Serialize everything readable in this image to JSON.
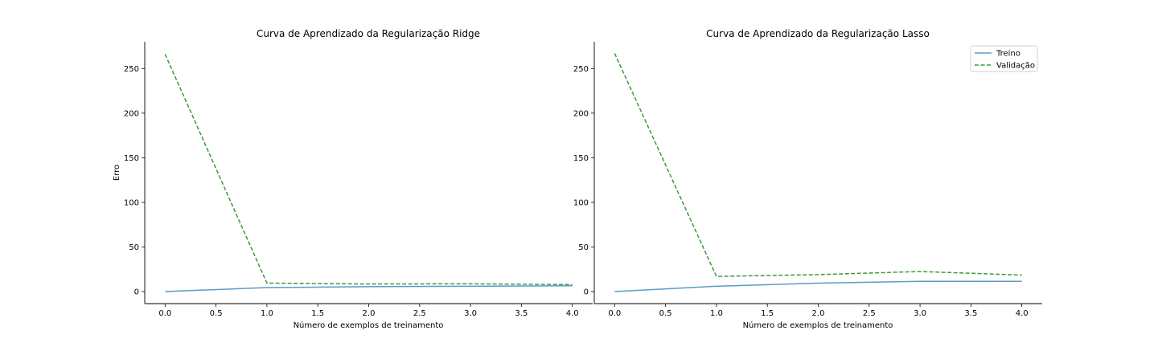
{
  "chart_data": [
    {
      "type": "line",
      "title": "Curva de Aprendizado da Regularização Ridge",
      "xlabel": "Número de exemplos de treinamento",
      "ylabel": "Erro",
      "xlim": [
        -0.2,
        4.2
      ],
      "ylim": [
        -13.5,
        280
      ],
      "xticks": [
        0.0,
        0.5,
        1.0,
        1.5,
        2.0,
        2.5,
        3.0,
        3.5,
        4.0
      ],
      "xtick_labels": [
        "0.0",
        "0.5",
        "1.0",
        "1.5",
        "2.0",
        "2.5",
        "3.0",
        "3.5",
        "4.0"
      ],
      "yticks": [
        0,
        50,
        100,
        150,
        200,
        250
      ],
      "ytick_labels": [
        "0",
        "50",
        "100",
        "150",
        "200",
        "250"
      ],
      "x": [
        0,
        1,
        2,
        3,
        4
      ],
      "series": [
        {
          "name": "Treino",
          "values": [
            0,
            4.5,
            5.5,
            6.0,
            6.5
          ],
          "color": "#5b9bc8",
          "style": "solid"
        },
        {
          "name": "Validação",
          "values": [
            266,
            9.5,
            8.5,
            8.7,
            7.8
          ],
          "color": "#3a9a3a",
          "style": "dashed"
        }
      ],
      "legend": null,
      "grid": false
    },
    {
      "type": "line",
      "title": "Curva de Aprendizado da Regularização Lasso",
      "xlabel": "Número de exemplos de treinamento",
      "ylabel": "",
      "xlim": [
        -0.2,
        4.2
      ],
      "ylim": [
        -13.5,
        280
      ],
      "xticks": [
        0.0,
        0.5,
        1.0,
        1.5,
        2.0,
        2.5,
        3.0,
        3.5,
        4.0
      ],
      "xtick_labels": [
        "0.0",
        "0.5",
        "1.0",
        "1.5",
        "2.0",
        "2.5",
        "3.0",
        "3.5",
        "4.0"
      ],
      "yticks": [
        0,
        50,
        100,
        150,
        200,
        250
      ],
      "ytick_labels": [
        "0",
        "50",
        "100",
        "150",
        "200",
        "250"
      ],
      "x": [
        0,
        1,
        2,
        3,
        4
      ],
      "series": [
        {
          "name": "Treino",
          "values": [
            0,
            6.0,
            9.5,
            11.5,
            11.5
          ],
          "color": "#5b9bc8",
          "style": "solid"
        },
        {
          "name": "Validação",
          "values": [
            267,
            17.0,
            19.0,
            22.5,
            18.5
          ],
          "color": "#3a9a3a",
          "style": "dashed"
        }
      ],
      "legend": "top-right",
      "grid": false
    }
  ]
}
